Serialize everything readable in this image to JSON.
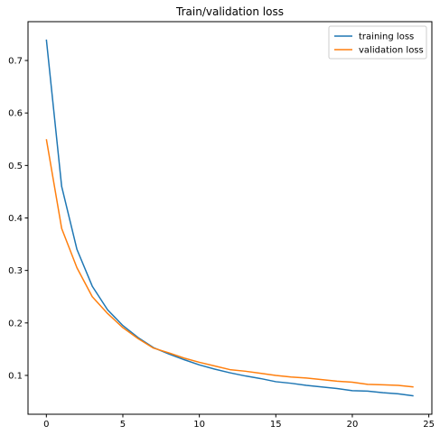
{
  "chart_data": {
    "type": "line",
    "title": "Train/validation loss",
    "xlabel": "",
    "ylabel": "",
    "xlim": [
      -1.2,
      25.2
    ],
    "ylim": [
      0.026,
      0.774
    ],
    "x_ticks": [
      0,
      5,
      10,
      15,
      20,
      25
    ],
    "y_ticks": [
      0.1,
      0.2,
      0.3,
      0.4,
      0.5,
      0.6,
      0.7
    ],
    "x_tick_labels": [
      "0",
      "5",
      "10",
      "15",
      "20",
      "25"
    ],
    "y_tick_labels": [
      "0.1",
      "0.2",
      "0.3",
      "0.4",
      "0.5",
      "0.6",
      "0.7"
    ],
    "grid": false,
    "legend_position": "top-right",
    "x": [
      0,
      1,
      2,
      3,
      4,
      5,
      6,
      7,
      8,
      9,
      10,
      11,
      12,
      13,
      14,
      15,
      16,
      17,
      18,
      19,
      20,
      21,
      22,
      23,
      24
    ],
    "series": [
      {
        "name": "training loss",
        "color": "#1f77b4",
        "values": [
          0.74,
          0.46,
          0.34,
          0.27,
          0.225,
          0.195,
          0.172,
          0.153,
          0.141,
          0.13,
          0.12,
          0.112,
          0.105,
          0.099,
          0.094,
          0.088,
          0.085,
          0.081,
          0.078,
          0.075,
          0.071,
          0.07,
          0.067,
          0.065,
          0.061
        ]
      },
      {
        "name": "validation loss",
        "color": "#ff7f0e",
        "values": [
          0.55,
          0.38,
          0.305,
          0.25,
          0.218,
          0.191,
          0.17,
          0.152,
          0.143,
          0.133,
          0.125,
          0.118,
          0.111,
          0.108,
          0.104,
          0.1,
          0.097,
          0.095,
          0.092,
          0.089,
          0.087,
          0.083,
          0.082,
          0.081,
          0.078
        ]
      }
    ]
  }
}
